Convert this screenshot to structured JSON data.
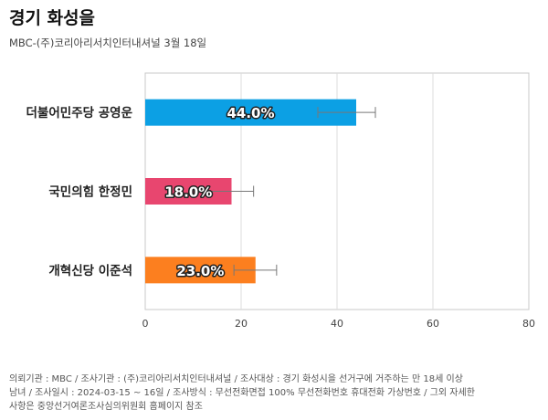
{
  "header": {
    "title": "경기 화성을",
    "subtitle": "MBC-(주)코리아리서치인터내셔널 3월 18일"
  },
  "chart_data": {
    "type": "bar",
    "orientation": "horizontal",
    "categories": [
      "더불어민주당 공영운",
      "국민의힘 한정민",
      "개혁신당 이준석"
    ],
    "values": [
      44.0,
      18.0,
      23.0
    ],
    "value_labels": [
      "44.0%",
      "18.0%",
      "23.0%"
    ],
    "error_bars": [
      [
        36.0,
        48.0
      ],
      [
        13.0,
        22.6
      ],
      [
        18.5,
        27.4
      ]
    ],
    "colors": [
      "#0ca0e4",
      "#e8466f",
      "#fc7f1f"
    ],
    "xlim": [
      0,
      80
    ],
    "x_ticks": [
      0,
      20,
      40,
      60,
      80
    ],
    "x_tick_labels": [
      "0",
      "20",
      "40",
      "60",
      "80"
    ],
    "grid": true
  },
  "footnote": {
    "lines": [
      "의뢰기관 : MBC / 조사기관 : (주)코리아리서치인터내셔널 / 조사대상 : 경기 화성시을 선거구에 거주하는 만 18세 이상",
      "남녀 / 조사일시 : 2024-03-15 ~ 16일 / 조사방식 : 무선전화면접 100% 무선전화번호 휴대전화 가상번호 / 그외 자세한",
      "사항은 중앙선거여론조사심의위원회 홈페이지 참조"
    ]
  }
}
